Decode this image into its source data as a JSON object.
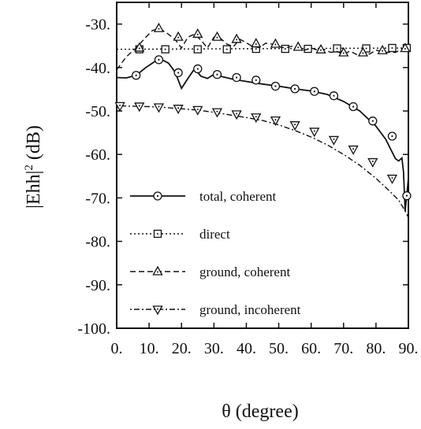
{
  "chart_data": {
    "type": "line",
    "xlabel": "θ (degree)",
    "ylabel_base": "|Ehh|",
    "ylabel_sup": "2",
    "ylabel_unit": "(dB)",
    "xlim": [
      0,
      90
    ],
    "ylim": [
      -100,
      -25
    ],
    "x_ticks": [
      0,
      10,
      20,
      30,
      40,
      50,
      60,
      70,
      80,
      90
    ],
    "x_tick_labels": [
      "0.",
      "10.",
      "20.",
      "30.",
      "40.",
      "50.",
      "60.",
      "70.",
      "80.",
      "90."
    ],
    "y_ticks": [
      -30,
      -40,
      -50,
      -60,
      -70,
      -80,
      -90,
      -100
    ],
    "y_tick_labels": [
      "-30.",
      "-40.",
      "-50.",
      "-60.",
      "-70.",
      "-80.",
      "-90.",
      "-100."
    ],
    "grid": false,
    "legend_position": "lower-left",
    "series": [
      {
        "name": "total, coherent",
        "line": "solid",
        "marker": "circle",
        "x": [
          0,
          3,
          6,
          9,
          12,
          14,
          16,
          18,
          20,
          22,
          24,
          26,
          28,
          30,
          33,
          36,
          40,
          45,
          50,
          55,
          60,
          65,
          70,
          75,
          80,
          83,
          86,
          87,
          88,
          88.5,
          89,
          89.5,
          90
        ],
        "y": [
          -42.3,
          -42.4,
          -41.8,
          -40.0,
          -38.5,
          -38.2,
          -39.0,
          -41.0,
          -44.8,
          -42.5,
          -40.3,
          -42.0,
          -42.5,
          -41.6,
          -42.2,
          -42.7,
          -43.2,
          -43.8,
          -44.3,
          -44.9,
          -45.4,
          -46.2,
          -47.8,
          -50.0,
          -53.5,
          -56.5,
          -61.0,
          -61.5,
          -60.8,
          -64.0,
          -73.0,
          -69.5,
          -65.5
        ],
        "marker_x": [
          6,
          13,
          19,
          25,
          31,
          37,
          43,
          49,
          55,
          61,
          67,
          73,
          79,
          85,
          89.5
        ],
        "marker_y": [
          -41.8,
          -38.2,
          -41.2,
          -40.3,
          -41.6,
          -42.3,
          -42.9,
          -44.3,
          -44.9,
          -45.5,
          -46.5,
          -49.0,
          -52.3,
          -55.8,
          -69.5
        ]
      },
      {
        "name": "direct",
        "line": "dotted",
        "marker": "square",
        "x": [
          0,
          90
        ],
        "y": [
          -35.8,
          -35.5
        ],
        "marker_x": [
          7,
          15,
          25,
          34,
          43,
          52,
          59,
          68,
          77,
          85,
          89.5
        ],
        "marker_y": [
          -35.8,
          -35.8,
          -35.8,
          -35.8,
          -35.7,
          -35.7,
          -35.7,
          -35.6,
          -35.6,
          -35.5,
          -35.5
        ]
      },
      {
        "name": "ground, coherent",
        "line": "dashed",
        "marker": "triangle-up",
        "x": [
          0,
          3,
          6,
          9,
          11,
          13,
          15,
          18,
          20,
          22,
          24,
          26,
          28,
          30,
          32,
          34,
          36,
          38,
          40,
          42,
          44,
          46,
          48,
          50,
          52,
          54,
          56,
          58,
          60,
          62,
          64,
          66,
          68,
          70,
          72,
          74,
          76,
          78,
          80,
          83,
          86,
          88,
          90
        ],
        "y": [
          -40.5,
          -37.5,
          -35.5,
          -33.0,
          -31.5,
          -31.0,
          -31.8,
          -33.5,
          -35.5,
          -33.0,
          -32.3,
          -33.7,
          -35.5,
          -33.0,
          -33.3,
          -34.6,
          -35.2,
          -33.5,
          -34.3,
          -35.2,
          -35.4,
          -34.4,
          -34.6,
          -35.2,
          -35.5,
          -35.1,
          -35.2,
          -36.0,
          -35.5,
          -36.0,
          -35.8,
          -36.5,
          -36.3,
          -37.0,
          -36.2,
          -37.0,
          -36.6,
          -36.9,
          -36.0,
          -36.5,
          -36.5,
          -35.8,
          -35.5
        ],
        "marker_x": [
          7,
          13,
          19,
          25,
          31,
          37,
          43,
          49,
          56,
          63,
          70,
          76,
          82,
          89
        ],
        "marker_y": [
          -35.5,
          -31.0,
          -33.0,
          -32.3,
          -33.0,
          -33.5,
          -34.5,
          -34.6,
          -35.3,
          -35.9,
          -36.6,
          -36.6,
          -36.1,
          -35.6
        ]
      },
      {
        "name": "ground, incoherent",
        "line": "dash-dot",
        "marker": "triangle-down",
        "x": [
          0,
          5,
          10,
          15,
          20,
          25,
          30,
          35,
          40,
          45,
          50,
          55,
          60,
          65,
          70,
          75,
          80,
          84,
          87,
          89,
          90
        ],
        "y": [
          -48.8,
          -48.9,
          -49.0,
          -49.2,
          -49.5,
          -49.8,
          -50.3,
          -50.9,
          -51.5,
          -52.2,
          -53.2,
          -54.5,
          -56.0,
          -57.8,
          -60.0,
          -62.5,
          -65.5,
          -68.3,
          -70.5,
          -73.0,
          -74.5
        ],
        "marker_x": [
          1,
          7,
          13,
          19,
          25,
          31,
          37,
          43,
          49,
          55,
          61,
          67,
          73,
          79,
          85
        ],
        "marker_y": [
          -48.8,
          -48.9,
          -49.1,
          -49.4,
          -49.7,
          -50.2,
          -50.7,
          -51.4,
          -52.1,
          -53.2,
          -54.7,
          -56.6,
          -58.8,
          -61.7,
          -65.5
        ]
      }
    ]
  }
}
